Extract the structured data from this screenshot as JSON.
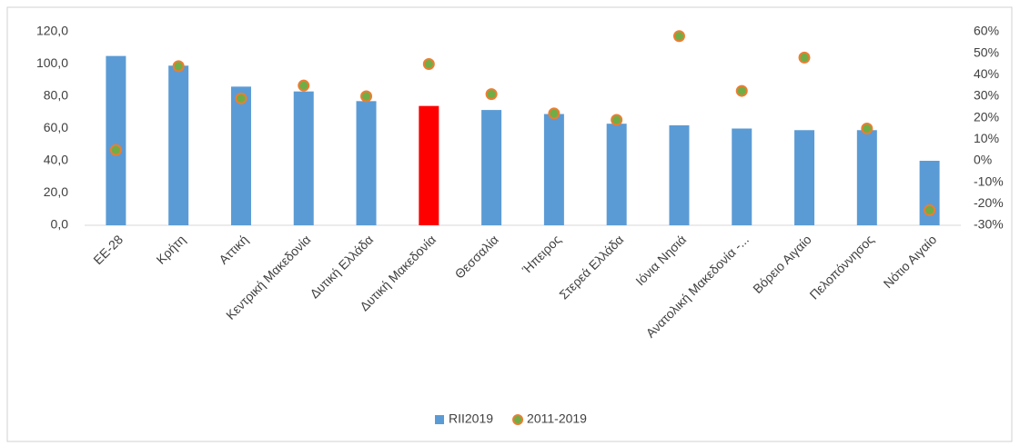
{
  "chart_data": {
    "type": "bar",
    "categories": [
      "ΕΕ-28",
      "Κρήτη",
      "Αττική",
      "Κεντρική Μακεδονία",
      "Δυτική Ελλάδα",
      "Δυτική Μακεδονία",
      "Θεσσαλία",
      "Ήπειρος",
      "Στερεά Ελλάδα",
      "Ιόνια Νησιά",
      "Ανατολική Μακεδονία -...",
      "Βόρειο Αιγαίο",
      "Πελοπόννησος",
      "Νότιο Αιγαίο"
    ],
    "series": [
      {
        "name": "RII2019",
        "type": "bar",
        "color": "#5b9bd5",
        "colors": [
          "#5b9bd5",
          "#5b9bd5",
          "#5b9bd5",
          "#5b9bd5",
          "#5b9bd5",
          "#ff0000",
          "#5b9bd5",
          "#5b9bd5",
          "#5b9bd5",
          "#5b9bd5",
          "#5b9bd5",
          "#5b9bd5",
          "#5b9bd5",
          "#5b9bd5"
        ],
        "values": [
          105,
          99,
          86,
          83,
          77,
          74,
          71.5,
          69,
          63,
          62,
          60,
          59,
          59,
          40
        ]
      },
      {
        "name": "2011-2019",
        "type": "scatter",
        "axis": "y2",
        "color": "#70ad47",
        "edge_color": "#ed7d31",
        "values": [
          5,
          44,
          29,
          35,
          30,
          45,
          31,
          22,
          19,
          58,
          32.5,
          48,
          15,
          -23
        ]
      }
    ],
    "ylim": [
      0,
      120
    ],
    "yticks": [
      {
        "value": 0,
        "label": "0,0"
      },
      {
        "value": 20,
        "label": "20,0"
      },
      {
        "value": 40,
        "label": "40,0"
      },
      {
        "value": 60,
        "label": "60,0"
      },
      {
        "value": 80,
        "label": "80,0"
      },
      {
        "value": 100,
        "label": "100,0"
      },
      {
        "value": 120,
        "label": "120,0"
      }
    ],
    "y2lim": [
      -30,
      60
    ],
    "y2ticks": [
      {
        "value": -30,
        "label": "-30%"
      },
      {
        "value": -20,
        "label": "-20%"
      },
      {
        "value": -10,
        "label": "-10%"
      },
      {
        "value": 0,
        "label": "0%"
      },
      {
        "value": 10,
        "label": "10%"
      },
      {
        "value": 20,
        "label": "20%"
      },
      {
        "value": 30,
        "label": "30%"
      },
      {
        "value": 40,
        "label": "40%"
      },
      {
        "value": 50,
        "label": "50%"
      },
      {
        "value": 60,
        "label": "60%"
      }
    ],
    "legend": "bottom"
  }
}
